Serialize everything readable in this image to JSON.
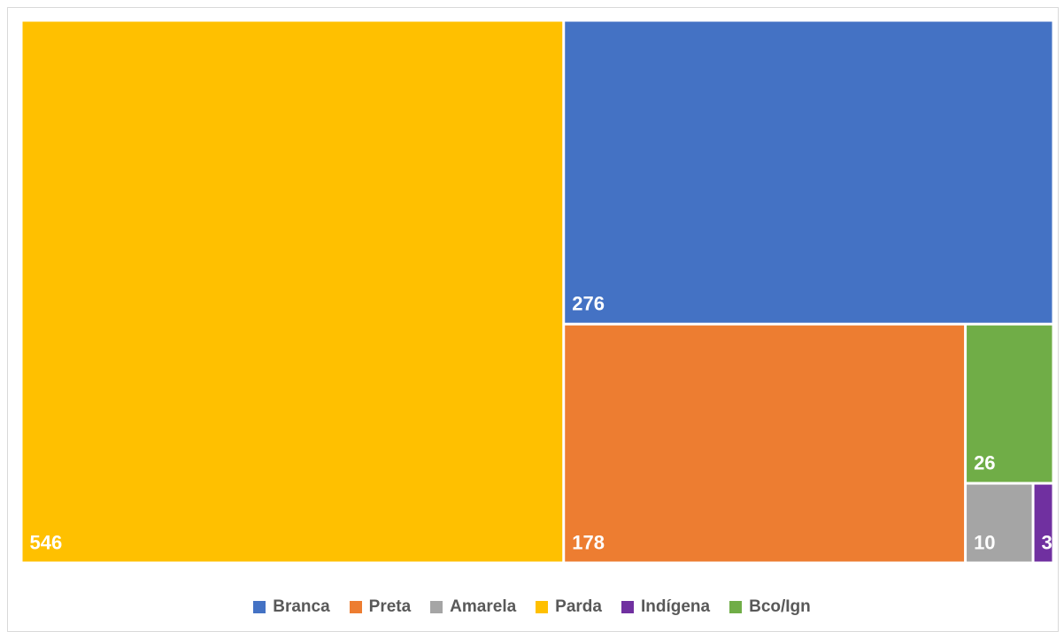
{
  "chart_data": {
    "type": "treemap",
    "title": "",
    "items": [
      {
        "name": "Parda",
        "value": 546,
        "label": "546",
        "color": "#FFC000"
      },
      {
        "name": "Branca",
        "value": 276,
        "label": "276",
        "color": "#4472C4"
      },
      {
        "name": "Preta",
        "value": 178,
        "label": "178",
        "color": "#ED7D31"
      },
      {
        "name": "Bco/Ign",
        "value": 26,
        "label": "26",
        "color": "#70AD47"
      },
      {
        "name": "Amarela",
        "value": 10,
        "label": "10",
        "color": "#A5A5A5"
      },
      {
        "name": "Indígena",
        "value": 3,
        "label": "3",
        "color": "#7030A0"
      }
    ],
    "legend": {
      "position": "bottom",
      "order": [
        "Branca",
        "Preta",
        "Amarela",
        "Parda",
        "Indígena",
        "Bco/Ign"
      ]
    }
  }
}
